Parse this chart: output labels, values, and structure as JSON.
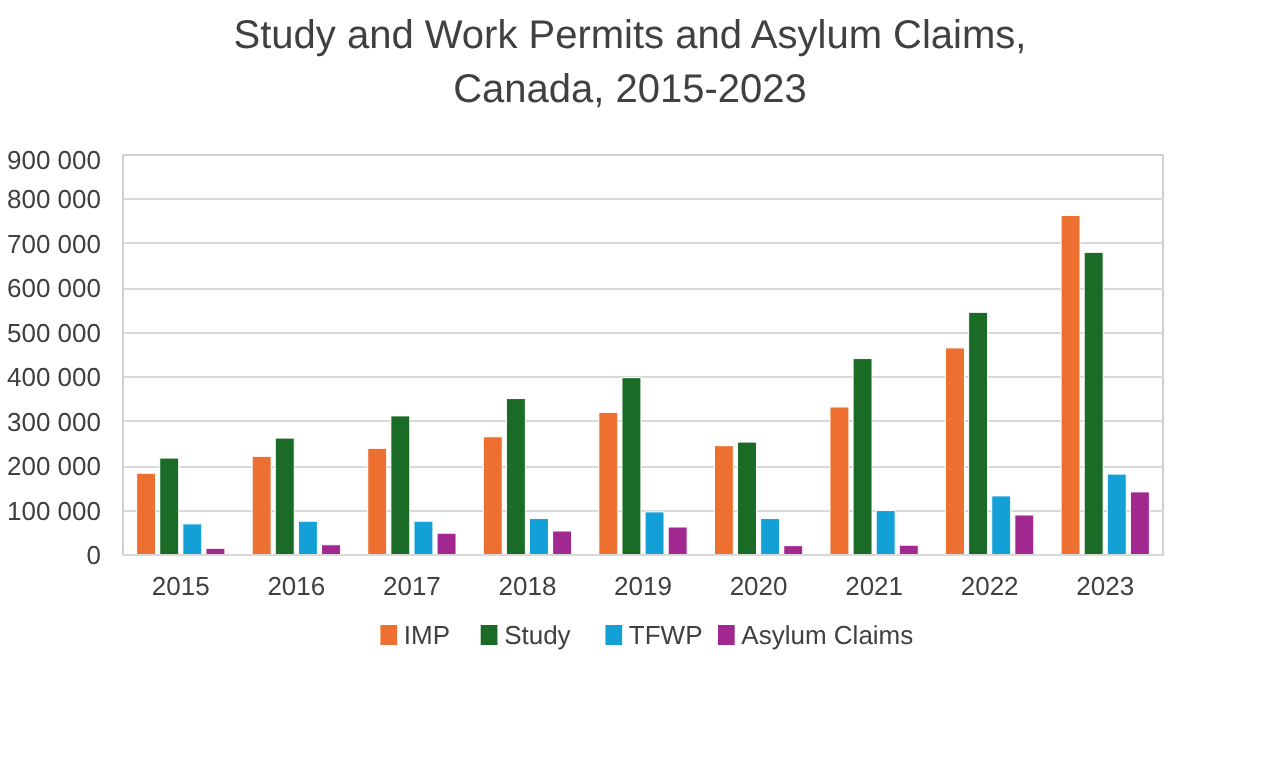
{
  "chart_data": {
    "type": "bar",
    "title": "Study and Work Permits and Asylum Claims,\nCanada, 2015-2023",
    "categories": [
      "2015",
      "2016",
      "2017",
      "2018",
      "2019",
      "2020",
      "2021",
      "2022",
      "2023"
    ],
    "series": [
      {
        "name": "IMP",
        "color": "#ed7031",
        "values": [
          184000,
          222000,
          240000,
          266000,
          321000,
          246000,
          333000,
          466000,
          764000
        ]
      },
      {
        "name": "Study",
        "color": "#1a6b25",
        "values": [
          218000,
          263000,
          313000,
          352000,
          399000,
          254000,
          442000,
          546000,
          681000
        ]
      },
      {
        "name": "TFWP",
        "color": "#12a0d7",
        "values": [
          70000,
          76000,
          76000,
          82000,
          97000,
          82000,
          100000,
          133000,
          182000
        ]
      },
      {
        "name": "Asylum Claims",
        "color": "#a0288f",
        "values": [
          15000,
          23000,
          49000,
          54000,
          63000,
          21000,
          22000,
          90000,
          142000
        ]
      }
    ],
    "ylim": [
      0,
      900000
    ],
    "yticks": [
      0,
      {
        "value": 100000,
        "label": "100 000"
      },
      {
        "value": 200000,
        "label": "200 000"
      },
      {
        "value": 300000,
        "label": "300 000"
      },
      {
        "value": 400000,
        "label": "400 000"
      },
      {
        "value": 500000,
        "label": "500 000"
      },
      {
        "value": 600000,
        "label": "600 000"
      },
      {
        "value": 700000,
        "label": "700 000"
      },
      {
        "value": 800000,
        "label": "800 000"
      },
      {
        "value": 900000,
        "label": "900 000"
      }
    ],
    "grid": "y",
    "legend": "bottom"
  }
}
